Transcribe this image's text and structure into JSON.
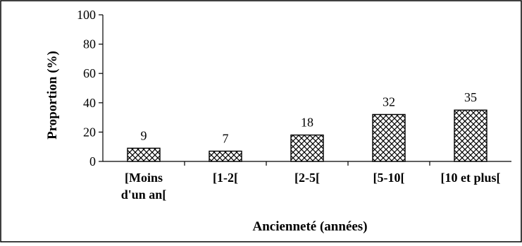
{
  "chart_data": {
    "type": "bar",
    "title": "",
    "xlabel": "Ancienneté (années)",
    "ylabel": "Proportion (%)",
    "ylim": [
      0,
      100
    ],
    "yticks": [
      0,
      20,
      40,
      60,
      80,
      100
    ],
    "categories": [
      [
        "[Moins",
        "d'un an["
      ],
      [
        "[1-2["
      ],
      [
        "[2-5["
      ],
      [
        "[5-10["
      ],
      [
        "[10 et plus["
      ]
    ],
    "values": [
      9,
      7,
      18,
      32,
      35
    ],
    "data_labels": [
      "9",
      "7",
      "18",
      "32",
      "35"
    ],
    "bar_pattern": "crosshatch",
    "grid": false,
    "legend": "none"
  }
}
